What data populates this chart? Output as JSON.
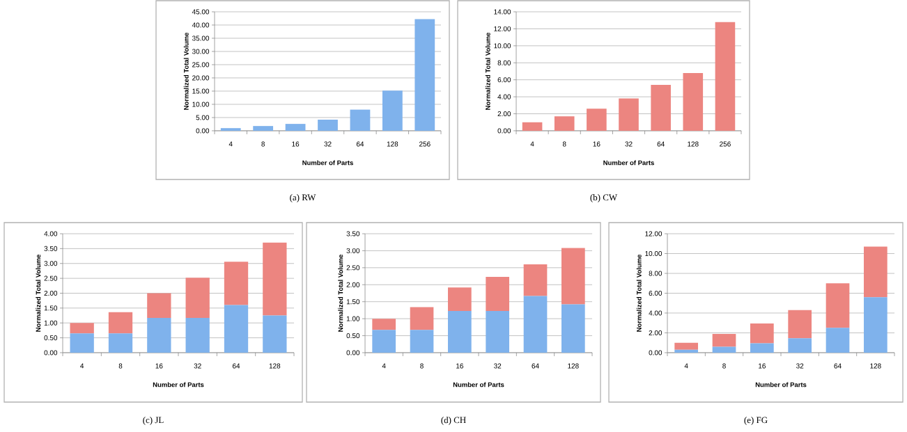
{
  "chart_data": [
    {
      "type": "bar",
      "title": "(a)  RW",
      "xlabel": "Number of Parts",
      "ylabel": "Normalized Total Volume",
      "categories": [
        "4",
        "8",
        "16",
        "32",
        "64",
        "128",
        "256"
      ],
      "series": [
        {
          "color": "#7fb2ec",
          "values": [
            1.0,
            1.8,
            2.6,
            4.2,
            8.0,
            15.2,
            42.2
          ]
        }
      ],
      "ylim": [
        0,
        45
      ],
      "yticks": [
        {
          "value": 0,
          "label": "0.00"
        },
        {
          "value": 5,
          "label": "5.00"
        },
        {
          "value": 10,
          "label": "10.00"
        },
        {
          "value": 15,
          "label": "15.00"
        },
        {
          "value": 20,
          "label": "20.00"
        },
        {
          "value": 25,
          "label": "25.00"
        },
        {
          "value": 30,
          "label": "30.00"
        },
        {
          "value": 35,
          "label": "35.00"
        },
        {
          "value": 40,
          "label": "40.00"
        },
        {
          "value": 45,
          "label": "45.00"
        }
      ],
      "grid": "y"
    },
    {
      "type": "bar",
      "title": "(b)  CW",
      "xlabel": "Number of Parts",
      "ylabel": "Normalized Total Volume",
      "categories": [
        "4",
        "8",
        "16",
        "32",
        "64",
        "128",
        "256"
      ],
      "series": [
        {
          "color": "#ec8580",
          "values": [
            1.0,
            1.7,
            2.6,
            3.8,
            5.4,
            6.8,
            12.8
          ]
        }
      ],
      "ylim": [
        0,
        14
      ],
      "yticks": [
        {
          "value": 0,
          "label": "0.00"
        },
        {
          "value": 2,
          "label": "2.00"
        },
        {
          "value": 4,
          "label": "4.00"
        },
        {
          "value": 6,
          "label": "6.00"
        },
        {
          "value": 8,
          "label": "8.00"
        },
        {
          "value": 10,
          "label": "10.00"
        },
        {
          "value": 12,
          "label": "12.00"
        },
        {
          "value": 14,
          "label": "14.00"
        }
      ],
      "grid": "y"
    },
    {
      "type": "bar",
      "stacked": true,
      "title": "(c)  JL",
      "xlabel": "Number of Parts",
      "ylabel": "Normalized Total Volume",
      "categories": [
        "4",
        "8",
        "16",
        "32",
        "64",
        "128"
      ],
      "series": [
        {
          "color": "#7fb2ec",
          "values": [
            0.65,
            0.65,
            1.17,
            1.17,
            1.6,
            1.25
          ]
        },
        {
          "color": "#ec8580",
          "values": [
            0.35,
            0.71,
            0.83,
            1.35,
            1.46,
            2.45
          ]
        }
      ],
      "ylim": [
        0,
        4
      ],
      "yticks": [
        {
          "value": 0,
          "label": "0.00"
        },
        {
          "value": 0.5,
          "label": "0.50"
        },
        {
          "value": 1,
          "label": "1.00"
        },
        {
          "value": 1.5,
          "label": "1.50"
        },
        {
          "value": 2,
          "label": "2.00"
        },
        {
          "value": 2.5,
          "label": "2.50"
        },
        {
          "value": 3,
          "label": "3.00"
        },
        {
          "value": 3.5,
          "label": "3.50"
        },
        {
          "value": 4,
          "label": "4.00"
        }
      ],
      "grid": "y"
    },
    {
      "type": "bar",
      "stacked": true,
      "title": "(d)  CH",
      "xlabel": "Number of Parts",
      "ylabel": "Normalized Total Volume",
      "categories": [
        "4",
        "8",
        "16",
        "32",
        "64",
        "128"
      ],
      "series": [
        {
          "color": "#7fb2ec",
          "values": [
            0.67,
            0.67,
            1.23,
            1.23,
            1.67,
            1.42
          ]
        },
        {
          "color": "#ec8580",
          "values": [
            0.33,
            0.67,
            0.69,
            1.0,
            0.93,
            1.66
          ]
        }
      ],
      "ylim": [
        0,
        3.5
      ],
      "yticks": [
        {
          "value": 0,
          "label": "0.00"
        },
        {
          "value": 0.5,
          "label": "0.50"
        },
        {
          "value": 1,
          "label": "1.00"
        },
        {
          "value": 1.5,
          "label": "1.50"
        },
        {
          "value": 2,
          "label": "2.00"
        },
        {
          "value": 2.5,
          "label": "2.50"
        },
        {
          "value": 3,
          "label": "3.00"
        },
        {
          "value": 3.5,
          "label": "3.50"
        }
      ],
      "grid": "y"
    },
    {
      "type": "bar",
      "stacked": true,
      "title": "(e)  FG",
      "xlabel": "Number of Parts",
      "ylabel": "Normalized Total Volume",
      "categories": [
        "4",
        "8",
        "16",
        "32",
        "64",
        "128"
      ],
      "series": [
        {
          "color": "#7fb2ec",
          "values": [
            0.3,
            0.6,
            0.95,
            1.45,
            2.5,
            5.6
          ]
        },
        {
          "color": "#ec8580",
          "values": [
            0.7,
            1.3,
            2.0,
            2.85,
            4.5,
            5.1
          ]
        }
      ],
      "ylim": [
        0,
        12
      ],
      "yticks": [
        {
          "value": 0,
          "label": "0.00"
        },
        {
          "value": 2,
          "label": "2.00"
        },
        {
          "value": 4,
          "label": "4.00"
        },
        {
          "value": 6,
          "label": "6.00"
        },
        {
          "value": 8,
          "label": "8.00"
        },
        {
          "value": 10,
          "label": "10.00"
        },
        {
          "value": 12,
          "label": "12.00"
        }
      ],
      "grid": "y"
    }
  ]
}
